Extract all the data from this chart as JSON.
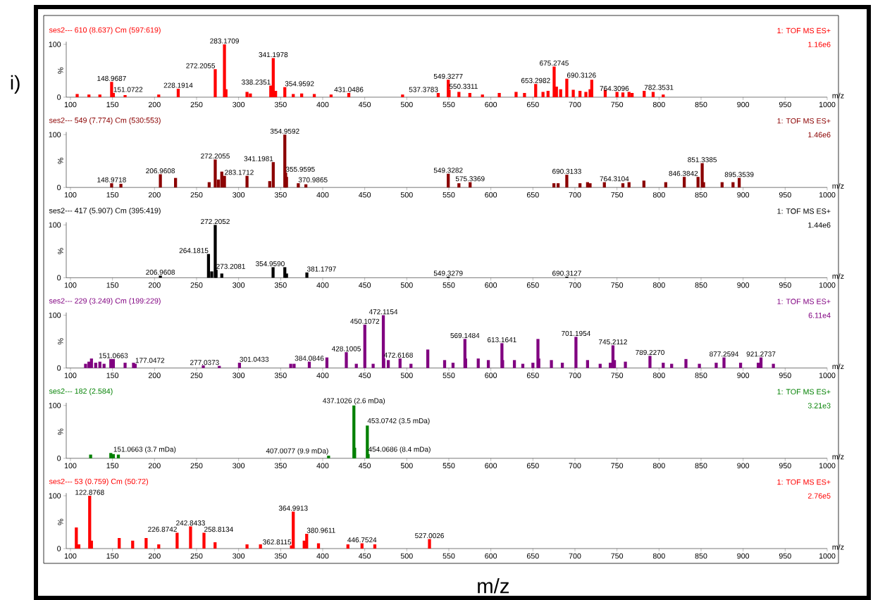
{
  "chart_data": [
    {
      "type": "bar",
      "title": "ses2--- 610 (8.637) Cm (597:619)",
      "subtitle": "1: TOF MS ES+",
      "xlabel": "m/z",
      "ylabel": "%",
      "color": "#ff0000",
      "xlim": [
        95,
        1000
      ],
      "xticks": [
        100,
        150,
        200,
        250,
        300,
        350,
        400,
        450,
        500,
        550,
        600,
        650,
        700,
        750,
        800,
        850,
        900,
        950,
        1000
      ],
      "ylim": [
        0,
        105
      ],
      "yticks": [
        0,
        100
      ],
      "x": [
        108,
        122,
        135,
        148.9687,
        151.0722,
        165,
        205,
        228.1914,
        272.2055,
        283.1709,
        285,
        310,
        314,
        338.2351,
        341.1978,
        344,
        354.9592,
        365,
        375,
        390,
        410,
        431.0486,
        495,
        537.3783,
        549.3277,
        550.3311,
        562,
        575,
        590,
        610,
        630,
        640,
        653.2982,
        662,
        668,
        675.2745,
        678,
        683,
        690.3126,
        698,
        706,
        713,
        718,
        720,
        736,
        750,
        757,
        764.3096,
        768,
        782.3531,
        793,
        805
      ],
      "values": [
        6,
        5,
        5,
        29,
        8,
        4,
        5,
        16,
        53,
        100,
        15,
        10,
        7,
        22,
        74,
        12,
        19,
        6,
        7,
        6,
        5,
        8,
        5,
        8,
        33,
        14,
        10,
        8,
        5,
        8,
        10,
        8,
        25,
        10,
        12,
        58,
        20,
        15,
        35,
        14,
        12,
        10,
        15,
        33,
        14,
        10,
        9,
        10,
        8,
        12,
        10,
        5
      ],
      "annotations": [
        "1.16e6",
        "i)",
        {
          "text": "148.9687",
          "x": 148.9687,
          "y": 29
        },
        {
          "text": "151.0722",
          "x": 151.0722,
          "y": 8
        },
        {
          "text": "228.1914",
          "x": 228.1914,
          "y": 16
        },
        {
          "text": "272.2055",
          "x": 272.2055,
          "y": 53
        },
        {
          "text": "283.1709",
          "x": 283.1709,
          "y": 100
        },
        {
          "text": "338.2351",
          "x": 338.2351,
          "y": 22
        },
        {
          "text": "341.1978",
          "x": 341.1978,
          "y": 74
        },
        {
          "text": "354.9592",
          "x": 354.9592,
          "y": 19
        },
        {
          "text": "431.0486",
          "x": 431.0486,
          "y": 8
        },
        {
          "text": "537.3783",
          "x": 537.3783,
          "y": 8
        },
        {
          "text": "549.3277",
          "x": 549.3277,
          "y": 33
        },
        {
          "text": "550.3311",
          "x": 550.3311,
          "y": 14
        },
        {
          "text": "653.2982",
          "x": 653.2982,
          "y": 25
        },
        {
          "text": "675.2745",
          "x": 675.2745,
          "y": 58
        },
        {
          "text": "690.3126",
          "x": 690.3126,
          "y": 35
        },
        {
          "text": "764.3096",
          "x": 764.3096,
          "y": 10
        },
        {
          "text": "782.3531",
          "x": 782.3531,
          "y": 12
        }
      ]
    },
    {
      "type": "bar",
      "title": "ses2--- 549 (7.774) Cm (530:553)",
      "subtitle": "1: TOF MS ES+",
      "xlabel": "m/z",
      "ylabel": "%",
      "color": "#8b0000",
      "xlim": [
        95,
        1000
      ],
      "xticks": [
        100,
        150,
        200,
        250,
        300,
        350,
        400,
        450,
        500,
        550,
        600,
        650,
        700,
        750,
        800,
        850,
        900,
        950,
        1000
      ],
      "ylim": [
        0,
        105
      ],
      "yticks": [
        0,
        100
      ],
      "x": [
        148.9718,
        160,
        206.9608,
        225,
        265,
        272.2055,
        276,
        280,
        283.1712,
        310,
        337,
        341.1981,
        354.9592,
        355.9595,
        357,
        370.9865,
        380,
        549.3282,
        562,
        575.3369,
        675,
        680,
        690.3133,
        706,
        715,
        718,
        735,
        757,
        764.3104,
        782,
        808,
        830,
        846.3842,
        851.3385,
        853,
        875,
        888,
        895.3539
      ],
      "values": [
        8,
        7,
        25,
        18,
        10,
        53,
        15,
        30,
        22,
        22,
        12,
        48,
        100,
        28,
        20,
        8,
        6,
        26,
        8,
        10,
        8,
        8,
        24,
        8,
        10,
        8,
        10,
        8,
        10,
        13,
        10,
        20,
        20,
        46,
        10,
        10,
        10,
        18
      ],
      "annotations": [
        "1.46e6",
        {
          "text": "148.9718",
          "x": 148.9718,
          "y": 8
        },
        {
          "text": "206.9608",
          "x": 206.9608,
          "y": 25
        },
        {
          "text": "272.2055",
          "x": 272.2055,
          "y": 53
        },
        {
          "text": "341.1981",
          "x": 341.1981,
          "y": 48
        },
        {
          "text": "283.1712",
          "x": 283.1712,
          "y": 22
        },
        {
          "text": "354.9592",
          "x": 354.9592,
          "y": 100
        },
        {
          "text": "355.9595",
          "x": 355.9595,
          "y": 28
        },
        {
          "text": "370.9865",
          "x": 370.9865,
          "y": 8
        },
        {
          "text": "549.3282",
          "x": 549.3282,
          "y": 26
        },
        {
          "text": "575.3369",
          "x": 575.3369,
          "y": 10
        },
        {
          "text": "690.3133",
          "x": 690.3133,
          "y": 24
        },
        {
          "text": "764.3104",
          "x": 764.3104,
          "y": 10
        },
        {
          "text": "846.3842",
          "x": 846.3842,
          "y": 20
        },
        {
          "text": "851.3385",
          "x": 851.3385,
          "y": 46
        },
        {
          "text": "895.3539",
          "x": 895.3539,
          "y": 18
        }
      ]
    },
    {
      "type": "bar",
      "title": "ses2--- 417 (5.907) Cm (395:419)",
      "subtitle": "1: TOF MS ES+",
      "xlabel": "m/z",
      "ylabel": "%",
      "color": "#000000",
      "xlim": [
        95,
        1000
      ],
      "xticks": [
        100,
        150,
        200,
        250,
        300,
        350,
        400,
        450,
        500,
        550,
        600,
        650,
        700,
        750,
        800,
        850,
        900,
        950,
        1000
      ],
      "ylim": [
        0,
        105
      ],
      "yticks": [
        0,
        100
      ],
      "x": [
        206.9608,
        264.1815,
        268,
        272.2052,
        273.2081,
        280,
        341,
        354.959,
        357,
        381.1797,
        549.3279,
        690.3127
      ],
      "values": [
        4,
        45,
        12,
        100,
        15,
        8,
        20,
        20,
        8,
        10,
        2,
        2
      ],
      "annotations": [
        "1.44e6",
        {
          "text": "206.9608",
          "x": 206.9608,
          "y": 4
        },
        {
          "text": "264.1815",
          "x": 264.1815,
          "y": 45
        },
        {
          "text": "272.2052",
          "x": 272.2052,
          "y": 100
        },
        {
          "text": "273.2081",
          "x": 273.2081,
          "y": 15
        },
        {
          "text": "354.9590",
          "x": 354.959,
          "y": 20
        },
        {
          "text": "381.1797",
          "x": 381.1797,
          "y": 10
        },
        {
          "text": "549.3279",
          "x": 549.3279,
          "y": 2
        },
        {
          "text": "690.3127",
          "x": 690.3127,
          "y": 2
        }
      ]
    },
    {
      "type": "bar",
      "title": "ses2--- 229 (3.249) Cm (199:229)",
      "subtitle": "1: TOF MS ES+",
      "xlabel": "m/z",
      "ylabel": "%",
      "color": "#800080",
      "xlim": [
        95,
        1000
      ],
      "xticks": [
        100,
        150,
        200,
        250,
        300,
        350,
        400,
        450,
        500,
        550,
        600,
        650,
        700,
        750,
        800,
        850,
        900,
        950,
        1000
      ],
      "ylim": [
        0,
        105
      ],
      "yticks": [
        0,
        100
      ],
      "x": [
        118,
        122,
        125,
        130,
        135,
        140,
        148,
        151.0663,
        165,
        175,
        177.0472,
        258,
        277.0373,
        301.0433,
        362,
        366,
        384.0846,
        405,
        428.1005,
        440,
        450.1072,
        460,
        472.1154,
        472.6168,
        478,
        492,
        505,
        525,
        545,
        555,
        569.1484,
        570,
        585,
        597,
        613.1641,
        614,
        628,
        638,
        650,
        656,
        657,
        672,
        685,
        701.1954,
        715,
        730,
        742,
        745.2112,
        747,
        760,
        789.227,
        805,
        815,
        832,
        848,
        868,
        877.2594,
        897,
        918,
        921.2737,
        936
      ],
      "values": [
        8,
        12,
        18,
        10,
        12,
        8,
        17,
        17,
        10,
        10,
        8,
        5,
        4,
        10,
        8,
        8,
        12,
        20,
        30,
        8,
        82,
        8,
        100,
        18,
        15,
        18,
        8,
        35,
        15,
        10,
        55,
        18,
        18,
        15,
        47,
        15,
        15,
        8,
        10,
        55,
        18,
        15,
        10,
        59,
        15,
        8,
        10,
        43,
        15,
        12,
        23,
        10,
        8,
        17,
        8,
        10,
        20,
        10,
        10,
        20,
        8
      ],
      "annotations": [
        "6.11e4",
        {
          "text": "151.0663",
          "x": 151.0663,
          "y": 17
        },
        {
          "text": "177.0472",
          "x": 177.0472,
          "y": 8
        },
        {
          "text": "277.0373",
          "x": 277.0373,
          "y": 4
        },
        {
          "text": "301.0433",
          "x": 301.0433,
          "y": 10
        },
        {
          "text": "384.0846",
          "x": 384.0846,
          "y": 12
        },
        {
          "text": "428.1005",
          "x": 428.1005,
          "y": 30
        },
        {
          "text": "450.1072",
          "x": 450.1072,
          "y": 82
        },
        {
          "text": "472.1154",
          "x": 472.1154,
          "y": 100
        },
        {
          "text": "472.6168",
          "x": 472.6168,
          "y": 18
        },
        {
          "text": "569.1484",
          "x": 569.1484,
          "y": 55
        },
        {
          "text": "613.1641",
          "x": 613.1641,
          "y": 47
        },
        {
          "text": "701.1954",
          "x": 701.1954,
          "y": 59
        },
        {
          "text": "745.2112",
          "x": 745.2112,
          "y": 43
        },
        {
          "text": "789.2270",
          "x": 789.227,
          "y": 23
        },
        {
          "text": "877.2594",
          "x": 877.2594,
          "y": 20
        },
        {
          "text": "921.2737",
          "x": 921.2737,
          "y": 20
        }
      ]
    },
    {
      "type": "bar",
      "title": "ses2--- 182 (2.584)",
      "subtitle": "1: TOF MS ES+",
      "xlabel": "m/z",
      "ylabel": "%",
      "color": "#008000",
      "xlim": [
        95,
        1000
      ],
      "xticks": [
        100,
        150,
        200,
        250,
        300,
        350,
        400,
        450,
        500,
        550,
        600,
        650,
        700,
        750,
        800,
        850,
        900,
        950,
        1000
      ],
      "ylim": [
        0,
        105
      ],
      "yticks": [
        0,
        100
      ],
      "x": [
        124,
        148,
        151.0663,
        157,
        407.0077,
        437.1026,
        438,
        453.0742,
        454.0686
      ],
      "values": [
        7,
        10,
        8,
        7,
        5,
        100,
        20,
        62,
        8
      ],
      "annotations": [
        "3.21e3",
        {
          "text": "151.0663 (3.7 mDa)",
          "x": 151.0663,
          "y": 8
        },
        {
          "text": "407.0077 (9.9 mDa)",
          "x": 407.0077,
          "y": 5
        },
        {
          "text": "437.1026 (2.6 mDa)",
          "x": 437.1026,
          "y": 100
        },
        {
          "text": "453.0742 (3.5 mDa)",
          "x": 453.0742,
          "y": 62
        },
        {
          "text": "454.0686 (8.4 mDa)",
          "x": 454.0686,
          "y": 8
        }
      ]
    },
    {
      "type": "bar",
      "title": "ses2--- 53 (0.759) Cm (50:72)",
      "subtitle": "1: TOF MS ES+",
      "xlabel": "m/z",
      "ylabel": "%",
      "color": "#ff0000",
      "xlim": [
        95,
        1000
      ],
      "xticks": [
        100,
        150,
        200,
        250,
        300,
        350,
        400,
        450,
        500,
        550,
        600,
        650,
        700,
        750,
        800,
        850,
        900,
        950,
        1000
      ],
      "ylim": [
        0,
        105
      ],
      "yticks": [
        0,
        100
      ],
      "x": [
        107,
        110,
        122.8768,
        125,
        158,
        174,
        190,
        205,
        226.8742,
        242.8433,
        258.8134,
        272,
        310,
        326,
        362.8115,
        364.9913,
        378,
        380.9611,
        395,
        430,
        446.7524,
        462,
        527.0026
      ],
      "values": [
        40,
        8,
        100,
        15,
        20,
        15,
        20,
        8,
        30,
        42,
        30,
        12,
        8,
        8,
        6,
        70,
        15,
        28,
        10,
        8,
        10,
        8,
        18
      ],
      "annotations": [
        "2.76e5",
        "m/z",
        {
          "text": "122.8768",
          "x": 122.8768,
          "y": 100
        },
        {
          "text": "226.8742",
          "x": 226.8742,
          "y": 30
        },
        {
          "text": "242.8433",
          "x": 242.8433,
          "y": 42
        },
        {
          "text": "258.8134",
          "x": 258.8134,
          "y": 30
        },
        {
          "text": "362.8115",
          "x": 362.8115,
          "y": 6
        },
        {
          "text": "364.9913",
          "x": 364.9913,
          "y": 70
        },
        {
          "text": "380.9611",
          "x": 380.9611,
          "y": 28
        },
        {
          "text": "446.7524",
          "x": 446.7524,
          "y": 10
        },
        {
          "text": "527.0026",
          "x": 527.0026,
          "y": 18
        }
      ]
    }
  ]
}
